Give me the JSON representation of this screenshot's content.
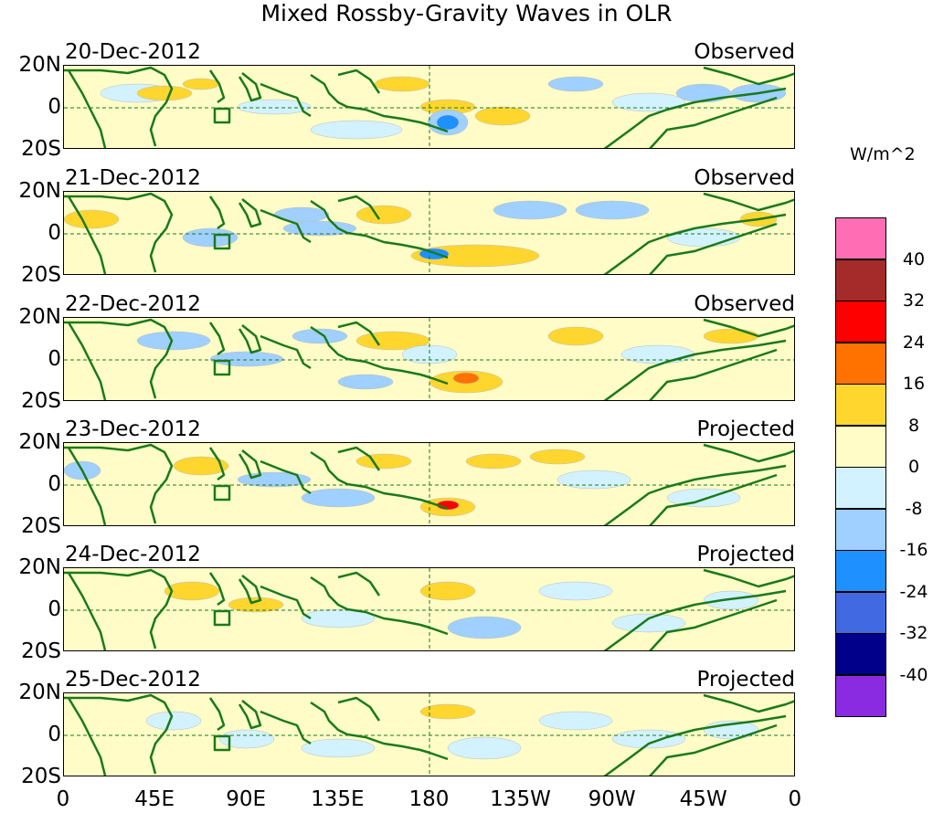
{
  "title": "Mixed Rossby-Gravity Waves in OLR",
  "panels": [
    {
      "date": "20-Dec-2012",
      "status": "Observed"
    },
    {
      "date": "21-Dec-2012",
      "status": "Observed"
    },
    {
      "date": "22-Dec-2012",
      "status": "Observed"
    },
    {
      "date": "23-Dec-2012",
      "status": "Projected"
    },
    {
      "date": "24-Dec-2012",
      "status": "Projected"
    },
    {
      "date": "25-Dec-2012",
      "status": "Projected"
    }
  ],
  "lat_labels": [
    "20N",
    "0",
    "20S"
  ],
  "lon_labels": [
    "0",
    "45E",
    "90E",
    "135E",
    "180",
    "135W",
    "90W",
    "45W",
    "0"
  ],
  "colorbar": {
    "unit": "W/m^2",
    "labels": [
      "40",
      "32",
      "24",
      "16",
      "8",
      "0",
      "-8",
      "-16",
      "-24",
      "-32",
      "-40"
    ],
    "colors": [
      "#ff6eb4",
      "#a52a2a",
      "#ff0000",
      "#ff7200",
      "#ffd62e",
      "#fffcc8",
      "#d2f2ff",
      "#a0d0ff",
      "#1e90ff",
      "#4169e1",
      "#00008b",
      "#8a2be2"
    ]
  },
  "map_colors": {
    "land": "#1a7a1a",
    "zero_line": "#1a7a1a"
  }
}
